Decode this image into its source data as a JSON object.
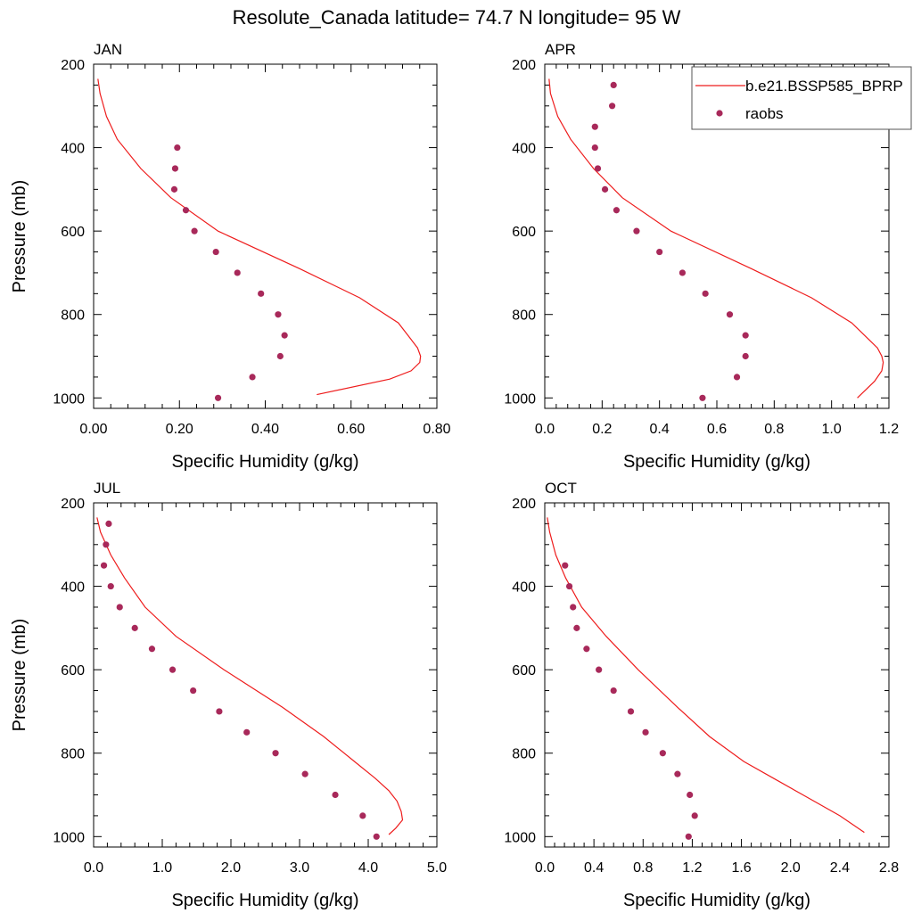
{
  "title": "Resolute_Canada  latitude= 74.7 N longitude= 95 W",
  "legend": {
    "model_label": "b.e21.BSSP585_BPRP",
    "obs_label": "raobs",
    "placement": "top-right"
  },
  "colors": {
    "model": "#ee1c1c",
    "obs": "#a8295a"
  },
  "chart_data": [
    {
      "type": "line",
      "title": "JAN",
      "xlabel": "Specific Humidity (g/kg)",
      "ylabel": "Pressure (mb)",
      "xlim": [
        0,
        0.8
      ],
      "ylim": [
        200,
        1025
      ],
      "y_inverted": true,
      "xticks": [
        "0.00",
        "0.20",
        "0.40",
        "0.60",
        "0.80"
      ],
      "yticks": [
        "200",
        "400",
        "600",
        "800",
        "1000"
      ],
      "model": {
        "p": [
          235,
          270,
          325,
          380,
          450,
          520,
          600,
          690,
          760,
          820,
          860,
          880,
          900,
          915,
          935,
          955,
          992
        ],
        "q": [
          0.01,
          0.015,
          0.03,
          0.055,
          0.11,
          0.18,
          0.29,
          0.48,
          0.62,
          0.71,
          0.74,
          0.755,
          0.762,
          0.76,
          0.74,
          0.69,
          0.52
        ]
      },
      "obs": {
        "p": [
          400,
          450,
          500,
          550,
          600,
          650,
          700,
          750,
          800,
          850,
          900,
          950,
          1000
        ],
        "q": [
          0.195,
          0.19,
          0.188,
          0.215,
          0.235,
          0.285,
          0.335,
          0.39,
          0.43,
          0.445,
          0.435,
          0.37,
          0.29
        ]
      }
    },
    {
      "type": "line",
      "title": "APR",
      "xlabel": "Specific Humidity (g/kg)",
      "ylabel": "",
      "xlim": [
        0,
        1.2
      ],
      "ylim": [
        200,
        1025
      ],
      "y_inverted": true,
      "xticks": [
        "0.0",
        "0.2",
        "0.4",
        "0.6",
        "0.8",
        "1.0",
        "1.2"
      ],
      "yticks": [
        "200",
        "400",
        "600",
        "800",
        "1000"
      ],
      "model": {
        "p": [
          235,
          270,
          325,
          380,
          450,
          520,
          600,
          690,
          760,
          820,
          860,
          880,
          900,
          915,
          935,
          960,
          1000
        ],
        "q": [
          0.015,
          0.02,
          0.045,
          0.09,
          0.17,
          0.27,
          0.44,
          0.72,
          0.93,
          1.07,
          1.13,
          1.16,
          1.175,
          1.18,
          1.175,
          1.15,
          1.09
        ]
      },
      "obs": {
        "p": [
          250,
          300,
          350,
          400,
          450,
          500,
          550,
          600,
          650,
          700,
          750,
          800,
          850,
          900,
          950,
          1000
        ],
        "q": [
          0.24,
          0.235,
          0.175,
          0.175,
          0.185,
          0.21,
          0.25,
          0.32,
          0.4,
          0.48,
          0.56,
          0.645,
          0.7,
          0.7,
          0.67,
          0.55
        ]
      }
    },
    {
      "type": "line",
      "title": "JUL",
      "xlabel": "Specific Humidity (g/kg)",
      "ylabel": "Pressure (mb)",
      "xlim": [
        0,
        5
      ],
      "ylim": [
        200,
        1025
      ],
      "y_inverted": true,
      "xticks": [
        "0.0",
        "1.0",
        "2.0",
        "3.0",
        "4.0",
        "5.0"
      ],
      "yticks": [
        "200",
        "400",
        "600",
        "800",
        "1000"
      ],
      "model": {
        "p": [
          235,
          270,
          325,
          380,
          450,
          520,
          600,
          690,
          760,
          820,
          860,
          890,
          915,
          940,
          960,
          980,
          995
        ],
        "q": [
          0.05,
          0.1,
          0.25,
          0.45,
          0.75,
          1.2,
          1.9,
          2.75,
          3.35,
          3.8,
          4.1,
          4.3,
          4.42,
          4.48,
          4.5,
          4.4,
          4.3
        ]
      },
      "obs": {
        "p": [
          250,
          300,
          350,
          400,
          450,
          500,
          550,
          600,
          650,
          700,
          750,
          800,
          850,
          900,
          950,
          1000
        ],
        "q": [
          0.22,
          0.18,
          0.15,
          0.25,
          0.38,
          0.6,
          0.85,
          1.15,
          1.45,
          1.83,
          2.23,
          2.65,
          3.08,
          3.52,
          3.92,
          4.12
        ]
      }
    },
    {
      "type": "line",
      "title": "OCT",
      "xlabel": "Specific Humidity (g/kg)",
      "ylabel": "",
      "xlim": [
        0,
        2.8
      ],
      "ylim": [
        200,
        1025
      ],
      "y_inverted": true,
      "xticks": [
        "0.0",
        "0.4",
        "0.8",
        "1.2",
        "1.6",
        "2.0",
        "2.4",
        "2.8"
      ],
      "yticks": [
        "200",
        "400",
        "600",
        "800",
        "1000"
      ],
      "model": {
        "p": [
          235,
          270,
          325,
          380,
          450,
          520,
          600,
          690,
          760,
          820,
          860,
          900,
          950,
          990
        ],
        "q": [
          0.02,
          0.04,
          0.09,
          0.17,
          0.3,
          0.5,
          0.76,
          1.08,
          1.34,
          1.62,
          1.86,
          2.1,
          2.4,
          2.6
        ]
      },
      "obs": {
        "p": [
          350,
          400,
          450,
          500,
          550,
          600,
          650,
          700,
          750,
          800,
          850,
          900,
          950,
          1000
        ],
        "q": [
          0.165,
          0.2,
          0.23,
          0.26,
          0.34,
          0.44,
          0.56,
          0.7,
          0.82,
          0.96,
          1.08,
          1.18,
          1.22,
          1.17
        ]
      }
    }
  ]
}
